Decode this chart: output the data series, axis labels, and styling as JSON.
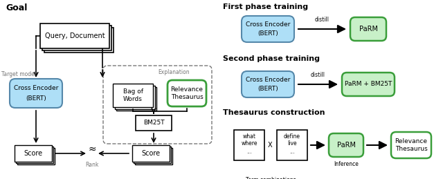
{
  "bg_color": "#ffffff",
  "title_left": "Goal",
  "title_right1": "First phase training",
  "title_right2": "Second phase training",
  "title_right3": "Thesaurus construction",
  "light_blue": "#aedff7",
  "light_green": "#c8f0c8",
  "green_edge": "#3a9e3a",
  "gray": "#777777"
}
